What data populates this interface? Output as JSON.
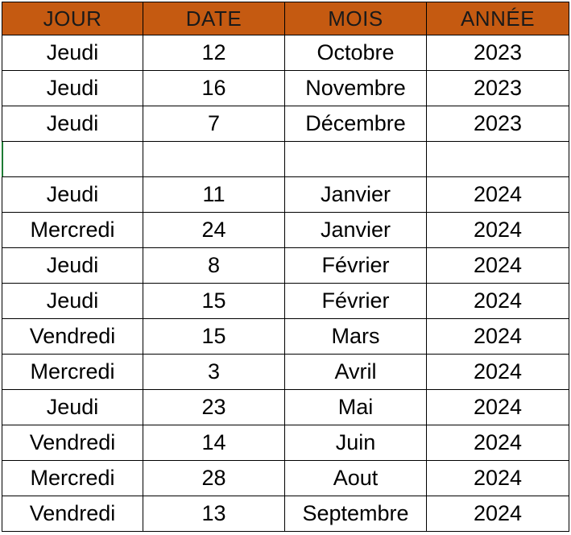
{
  "headers": [
    "JOUR",
    "DATE",
    "MOIS",
    "ANNÉE"
  ],
  "rows": [
    [
      "Jeudi",
      "12",
      "Octobre",
      "2023"
    ],
    [
      "Jeudi",
      "16",
      "Novembre",
      "2023"
    ],
    [
      "Jeudi",
      "7",
      "Décembre",
      "2023"
    ],
    [
      "",
      "",
      "",
      ""
    ],
    [
      "Jeudi",
      "11",
      "Janvier",
      "2024"
    ],
    [
      "Mercredi",
      "24",
      "Janvier",
      "2024"
    ],
    [
      "Jeudi",
      "8",
      "Février",
      "2024"
    ],
    [
      "Jeudi",
      "15",
      "Février",
      "2024"
    ],
    [
      "Vendredi",
      "15",
      "Mars",
      "2024"
    ],
    [
      "Mercredi",
      "3",
      "Avril",
      "2024"
    ],
    [
      "Jeudi",
      "23",
      "Mai",
      "2024"
    ],
    [
      "Vendredi",
      "14",
      "Juin",
      "2024"
    ],
    [
      "Mercredi",
      "28",
      "Aout",
      "2024"
    ],
    [
      "Vendredi",
      "13",
      "Septembre",
      "2024"
    ]
  ],
  "colors": {
    "header_fill": "#c55a11",
    "grid": "#000000",
    "active_cell_border": "#1e7b34"
  }
}
